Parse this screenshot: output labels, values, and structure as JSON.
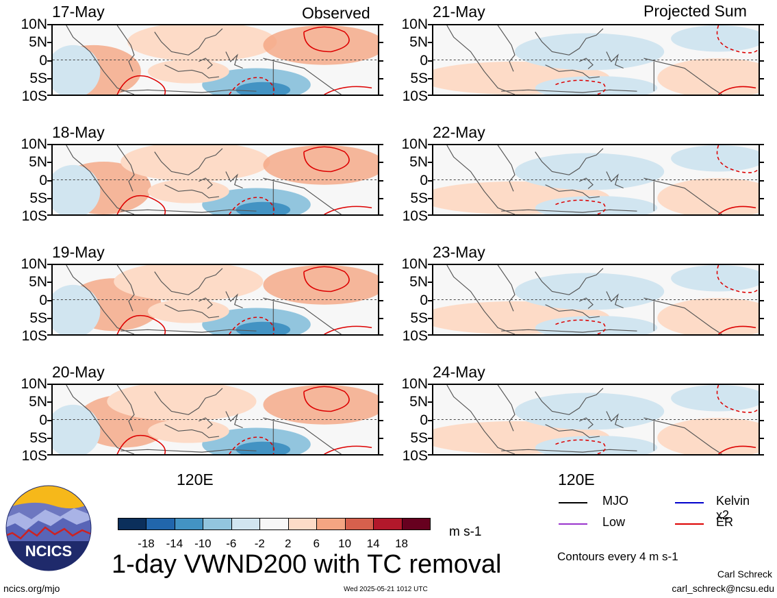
{
  "columns": {
    "left_tag": "Observed",
    "right_tag": "Projected Sum"
  },
  "lat_labels": [
    "10N",
    "5N",
    "0",
    "5S",
    "10S"
  ],
  "lon_label": "120E",
  "panels": [
    {
      "date": "17-May",
      "col": "observed"
    },
    {
      "date": "18-May",
      "col": "observed"
    },
    {
      "date": "19-May",
      "col": "observed"
    },
    {
      "date": "20-May",
      "col": "observed"
    },
    {
      "date": "21-May",
      "col": "projected"
    },
    {
      "date": "22-May",
      "col": "projected"
    },
    {
      "date": "23-May",
      "col": "projected"
    },
    {
      "date": "24-May",
      "col": "projected"
    }
  ],
  "colorbar": {
    "colors": [
      "#0b2f5b",
      "#2166ac",
      "#4393c3",
      "#92c5de",
      "#d1e5f0",
      "#f7f7f7",
      "#fddbc7",
      "#f4a582",
      "#d6604d",
      "#b2182b",
      "#67001f"
    ],
    "ticks": [
      "-18",
      "-14",
      "-10",
      "-6",
      "-2",
      "2",
      "6",
      "10",
      "14",
      "18"
    ],
    "units": "m s-1"
  },
  "legend": {
    "items": [
      {
        "label": "MJO",
        "color": "#000000"
      },
      {
        "label": "Kelvin x2",
        "color": "#0000cc"
      },
      {
        "label": "Low",
        "color": "#9933cc"
      },
      {
        "label": "ER",
        "color": "#dd0000"
      }
    ],
    "contour_note": "Contours every 4 m s-1"
  },
  "title": "1-day VWND200 with TC removal",
  "logo_text": "NCICS",
  "footer": {
    "url": "ncics.org/mjo",
    "timestamp": "Wed 2025-05-21 1012 UTC",
    "author": "Carl Schreck",
    "email": "carl_schreck@ncsu.edu"
  }
}
